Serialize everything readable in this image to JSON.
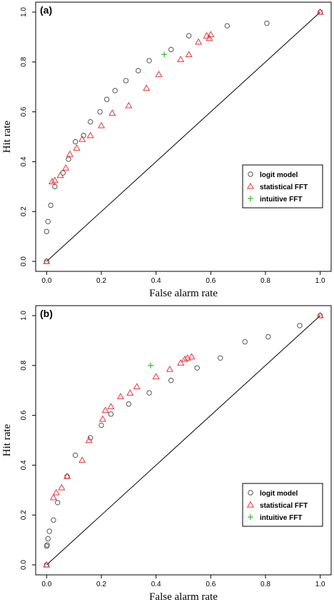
{
  "chart_data": [
    {
      "type": "scatter",
      "panel_label": "(a)",
      "xlabel": "False alarm rate",
      "ylabel": "Hit rate",
      "xlim": [
        0,
        1
      ],
      "ylim": [
        0,
        1
      ],
      "xticks": [
        "0.0",
        "0.2",
        "0.4",
        "0.6",
        "0.8",
        "1.0"
      ],
      "yticks": [
        "0.0",
        "0.2",
        "0.4",
        "0.6",
        "0.8",
        "1.0"
      ],
      "legend_position": "right-middle",
      "diagonal": true,
      "series": [
        {
          "name": "logit model",
          "marker": "circle",
          "color": "#555555",
          "points": [
            [
              0,
              0
            ],
            [
              0,
              0.12
            ],
            [
              0.005,
              0.16
            ],
            [
              0.015,
              0.225
            ],
            [
              0.03,
              0.3
            ],
            [
              0.06,
              0.355
            ],
            [
              0.08,
              0.41
            ],
            [
              0.105,
              0.48
            ],
            [
              0.135,
              0.505
            ],
            [
              0.16,
              0.56
            ],
            [
              0.195,
              0.6
            ],
            [
              0.22,
              0.65
            ],
            [
              0.25,
              0.685
            ],
            [
              0.29,
              0.725
            ],
            [
              0.335,
              0.765
            ],
            [
              0.375,
              0.805
            ],
            [
              0.455,
              0.85
            ],
            [
              0.52,
              0.905
            ],
            [
              0.66,
              0.945
            ],
            [
              0.805,
              0.955
            ],
            [
              1,
              1
            ]
          ]
        },
        {
          "name": "statistical FFT",
          "marker": "triangle",
          "color": "#e8363b",
          "points": [
            [
              0,
              0
            ],
            [
              0.02,
              0.32
            ],
            [
              0.03,
              0.325
            ],
            [
              0.05,
              0.345
            ],
            [
              0.07,
              0.375
            ],
            [
              0.085,
              0.43
            ],
            [
              0.11,
              0.455
            ],
            [
              0.13,
              0.49
            ],
            [
              0.16,
              0.505
            ],
            [
              0.2,
              0.545
            ],
            [
              0.24,
              0.595
            ],
            [
              0.3,
              0.625
            ],
            [
              0.365,
              0.695
            ],
            [
              0.41,
              0.75
            ],
            [
              0.49,
              0.81
            ],
            [
              0.52,
              0.83
            ],
            [
              0.555,
              0.88
            ],
            [
              0.585,
              0.905
            ],
            [
              0.595,
              0.895
            ],
            [
              0.6,
              0.91
            ],
            [
              1,
              1
            ]
          ]
        },
        {
          "name": "intuitive FFT",
          "marker": "plus",
          "color": "#2db82d",
          "points": [
            [
              0.43,
              0.83
            ]
          ]
        }
      ]
    },
    {
      "type": "scatter",
      "panel_label": "(b)",
      "xlabel": "False alarm rate",
      "ylabel": "Hit rate",
      "xlim": [
        0,
        1
      ],
      "ylim": [
        0,
        1
      ],
      "xticks": [
        "0.0",
        "0.2",
        "0.4",
        "0.6",
        "0.8",
        "1.0"
      ],
      "yticks": [
        "0.0",
        "0.2",
        "0.4",
        "0.6",
        "0.8",
        "1.0"
      ],
      "legend_position": "right-bottom",
      "diagonal": true,
      "series": [
        {
          "name": "logit model",
          "marker": "circle",
          "color": "#555555",
          "points": [
            [
              0,
              0
            ],
            [
              0,
              0.075
            ],
            [
              0.002,
              0.08
            ],
            [
              0.005,
              0.105
            ],
            [
              0.01,
              0.135
            ],
            [
              0.025,
              0.18
            ],
            [
              0.04,
              0.25
            ],
            [
              0.075,
              0.355
            ],
            [
              0.105,
              0.44
            ],
            [
              0.16,
              0.51
            ],
            [
              0.2,
              0.56
            ],
            [
              0.235,
              0.605
            ],
            [
              0.3,
              0.645
            ],
            [
              0.375,
              0.69
            ],
            [
              0.455,
              0.74
            ],
            [
              0.55,
              0.79
            ],
            [
              0.635,
              0.83
            ],
            [
              0.725,
              0.895
            ],
            [
              0.81,
              0.915
            ],
            [
              0.925,
              0.96
            ],
            [
              1,
              1
            ]
          ]
        },
        {
          "name": "statistical FFT",
          "marker": "triangle",
          "color": "#e8363b",
          "points": [
            [
              0,
              0
            ],
            [
              0.025,
              0.27
            ],
            [
              0.035,
              0.29
            ],
            [
              0.055,
              0.31
            ],
            [
              0.075,
              0.355
            ],
            [
              0.13,
              0.42
            ],
            [
              0.155,
              0.5
            ],
            [
              0.205,
              0.585
            ],
            [
              0.215,
              0.62
            ],
            [
              0.235,
              0.635
            ],
            [
              0.27,
              0.675
            ],
            [
              0.305,
              0.69
            ],
            [
              0.33,
              0.715
            ],
            [
              0.4,
              0.755
            ],
            [
              0.45,
              0.785
            ],
            [
              0.49,
              0.81
            ],
            [
              0.505,
              0.825
            ],
            [
              0.515,
              0.83
            ],
            [
              0.53,
              0.835
            ],
            [
              1,
              1
            ]
          ]
        },
        {
          "name": "intuitive FFT",
          "marker": "plus",
          "color": "#2db82d",
          "points": [
            [
              0.38,
              0.8
            ]
          ]
        }
      ]
    }
  ]
}
